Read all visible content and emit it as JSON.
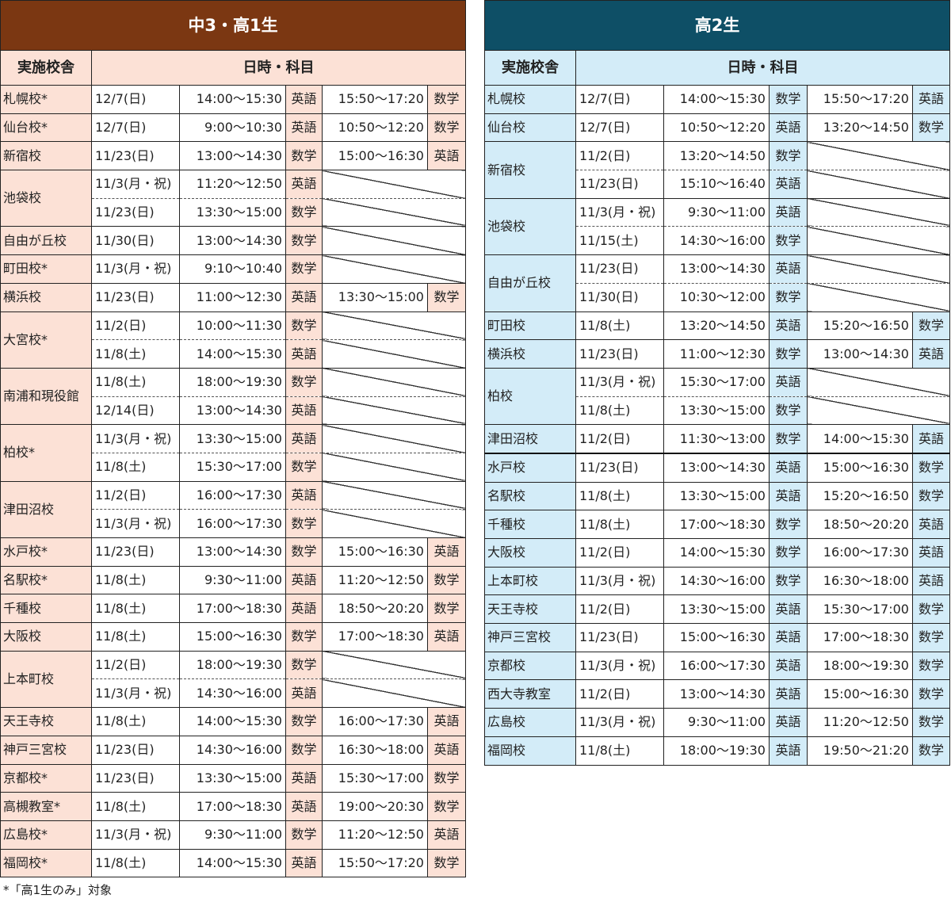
{
  "left": {
    "title": "中3・高1生",
    "header_campus": "実施校舎",
    "header_datetime": "日時・科目",
    "groups": [
      {
        "campus": "札幌校*",
        "rows": [
          {
            "date": "12/7(日)",
            "t1": "14:00～15:30",
            "s1": "英語",
            "t2": "15:50～17:20",
            "s2": "数学"
          }
        ]
      },
      {
        "campus": "仙台校*",
        "rows": [
          {
            "date": "12/7(日)",
            "t1": "9:00～10:30",
            "s1": "英語",
            "t2": "10:50～12:20",
            "s2": "数学"
          }
        ]
      },
      {
        "campus": "新宿校",
        "rows": [
          {
            "date": "11/23(日)",
            "t1": "13:00～14:30",
            "s1": "数学",
            "t2": "15:00～16:30",
            "s2": "英語"
          }
        ]
      },
      {
        "campus": "池袋校",
        "rows": [
          {
            "date": "11/3(月・祝)",
            "t1": "11:20～12:50",
            "s1": "英語"
          },
          {
            "date": "11/23(日)",
            "t1": "13:30～15:00",
            "s1": "数学"
          }
        ]
      },
      {
        "campus": "自由が丘校",
        "rows": [
          {
            "date": "11/30(日)",
            "t1": "13:00～14:30",
            "s1": "数学"
          }
        ]
      },
      {
        "campus": "町田校*",
        "rows": [
          {
            "date": "11/3(月・祝)",
            "t1": "9:10～10:40",
            "s1": "数学"
          }
        ]
      },
      {
        "campus": "横浜校",
        "rows": [
          {
            "date": "11/23(日)",
            "t1": "11:00～12:30",
            "s1": "英語",
            "t2": "13:30～15:00",
            "s2": "数学"
          }
        ]
      },
      {
        "campus": "大宮校*",
        "rows": [
          {
            "date": "11/2(日)",
            "t1": "10:00～11:30",
            "s1": "数学"
          },
          {
            "date": "11/8(土)",
            "t1": "14:00～15:30",
            "s1": "英語"
          }
        ]
      },
      {
        "campus": "南浦和現役館",
        "rows": [
          {
            "date": "11/8(土)",
            "t1": "18:00～19:30",
            "s1": "数学"
          },
          {
            "date": "12/14(日)",
            "t1": "13:00～14:30",
            "s1": "英語"
          }
        ]
      },
      {
        "campus": "柏校*",
        "rows": [
          {
            "date": "11/3(月・祝)",
            "t1": "13:30～15:00",
            "s1": "英語"
          },
          {
            "date": "11/8(土)",
            "t1": "15:30～17:00",
            "s1": "数学"
          }
        ]
      },
      {
        "campus": "津田沼校",
        "rows": [
          {
            "date": "11/2(日)",
            "t1": "16:00～17:30",
            "s1": "英語"
          },
          {
            "date": "11/3(月・祝)",
            "t1": "16:00～17:30",
            "s1": "数学"
          }
        ]
      },
      {
        "campus": "水戸校*",
        "rows": [
          {
            "date": "11/23(日)",
            "t1": "13:00～14:30",
            "s1": "数学",
            "t2": "15:00～16:30",
            "s2": "英語"
          }
        ]
      },
      {
        "campus": "名駅校*",
        "rows": [
          {
            "date": "11/8(土)",
            "t1": "9:30～11:00",
            "s1": "英語",
            "t2": "11:20～12:50",
            "s2": "数学"
          }
        ]
      },
      {
        "campus": "千種校",
        "rows": [
          {
            "date": "11/8(土)",
            "t1": "17:00～18:30",
            "s1": "英語",
            "t2": "18:50～20:20",
            "s2": "数学"
          }
        ]
      },
      {
        "campus": "大阪校",
        "rows": [
          {
            "date": "11/8(土)",
            "t1": "15:00～16:30",
            "s1": "数学",
            "t2": "17:00～18:30",
            "s2": "英語"
          }
        ]
      },
      {
        "campus": "上本町校",
        "rows": [
          {
            "date": "11/2(日)",
            "t1": "18:00～19:30",
            "s1": "数学"
          },
          {
            "date": "11/3(月・祝)",
            "t1": "14:30～16:00",
            "s1": "英語"
          }
        ]
      },
      {
        "campus": "天王寺校",
        "rows": [
          {
            "date": "11/8(土)",
            "t1": "14:00～15:30",
            "s1": "数学",
            "t2": "16:00～17:30",
            "s2": "英語"
          }
        ]
      },
      {
        "campus": "神戸三宮校",
        "rows": [
          {
            "date": "11/23(日)",
            "t1": "14:30～16:00",
            "s1": "数学",
            "t2": "16:30～18:00",
            "s2": "英語"
          }
        ]
      },
      {
        "campus": "京都校*",
        "rows": [
          {
            "date": "11/23(日)",
            "t1": "13:30～15:00",
            "s1": "英語",
            "t2": "15:30～17:00",
            "s2": "数学"
          }
        ]
      },
      {
        "campus": "高槻教室*",
        "rows": [
          {
            "date": "11/8(土)",
            "t1": "17:00～18:30",
            "s1": "英語",
            "t2": "19:00～20:30",
            "s2": "数学"
          }
        ]
      },
      {
        "campus": "広島校*",
        "rows": [
          {
            "date": "11/3(月・祝)",
            "t1": "9:30～11:00",
            "s1": "数学",
            "t2": "11:20～12:50",
            "s2": "英語"
          }
        ]
      },
      {
        "campus": "福岡校*",
        "rows": [
          {
            "date": "11/8(土)",
            "t1": "14:00～15:30",
            "s1": "英語",
            "t2": "15:50～17:20",
            "s2": "数学"
          }
        ]
      }
    ]
  },
  "right": {
    "title": "高2生",
    "header_campus": "実施校舎",
    "header_datetime": "日時・科目",
    "groups": [
      {
        "campus": "札幌校",
        "rows": [
          {
            "date": "12/7(日)",
            "t1": "14:00～15:30",
            "s1": "数学",
            "t2": "15:50～17:20",
            "s2": "英語"
          }
        ]
      },
      {
        "campus": "仙台校",
        "rows": [
          {
            "date": "12/7(日)",
            "t1": "10:50～12:20",
            "s1": "英語",
            "t2": "13:20～14:50",
            "s2": "数学"
          }
        ]
      },
      {
        "campus": "新宿校",
        "rows": [
          {
            "date": "11/2(日)",
            "t1": "13:20～14:50",
            "s1": "数学"
          },
          {
            "date": "11/23(日)",
            "t1": "15:10～16:40",
            "s1": "英語"
          }
        ]
      },
      {
        "campus": "池袋校",
        "rows": [
          {
            "date": "11/3(月・祝)",
            "t1": "9:30～11:00",
            "s1": "英語"
          },
          {
            "date": "11/15(土)",
            "t1": "14:30～16:00",
            "s1": "数学"
          }
        ]
      },
      {
        "campus": "自由が丘校",
        "rows": [
          {
            "date": "11/23(日)",
            "t1": "13:00～14:30",
            "s1": "英語"
          },
          {
            "date": "11/30(日)",
            "t1": "10:30～12:00",
            "s1": "数学"
          }
        ]
      },
      {
        "campus": "町田校",
        "rows": [
          {
            "date": "11/8(土)",
            "t1": "13:20～14:50",
            "s1": "英語",
            "t2": "15:20～16:50",
            "s2": "数学"
          }
        ]
      },
      {
        "campus": "横浜校",
        "rows": [
          {
            "date": "11/23(日)",
            "t1": "11:00～12:30",
            "s1": "数学",
            "t2": "13:00～14:30",
            "s2": "英語"
          }
        ]
      },
      {
        "campus": "柏校",
        "rows": [
          {
            "date": "11/3(月・祝)",
            "t1": "15:30～17:00",
            "s1": "英語"
          },
          {
            "date": "11/8(土)",
            "t1": "13:30～15:00",
            "s1": "数学"
          }
        ]
      },
      {
        "campus": "津田沼校",
        "rows": [
          {
            "date": "11/2(日)",
            "t1": "11:30～13:00",
            "s1": "数学",
            "t2": "14:00～15:30",
            "s2": "英語"
          }
        ]
      },
      {
        "campus": "水戸校",
        "rows": [
          {
            "date": "11/23(日)",
            "t1": "13:00～14:30",
            "s1": "英語",
            "t2": "15:00～16:30",
            "s2": "数学"
          }
        ]
      },
      {
        "campus": "名駅校",
        "rows": [
          {
            "date": "11/8(土)",
            "t1": "13:30～15:00",
            "s1": "英語",
            "t2": "15:20～16:50",
            "s2": "数学"
          }
        ]
      },
      {
        "campus": "千種校",
        "rows": [
          {
            "date": "11/8(土)",
            "t1": "17:00～18:30",
            "s1": "数学",
            "t2": "18:50～20:20",
            "s2": "英語"
          }
        ]
      },
      {
        "campus": "大阪校",
        "rows": [
          {
            "date": "11/2(日)",
            "t1": "14:00～15:30",
            "s1": "数学",
            "t2": "16:00～17:30",
            "s2": "英語"
          }
        ]
      },
      {
        "campus": "上本町校",
        "rows": [
          {
            "date": "11/3(月・祝)",
            "t1": "14:30～16:00",
            "s1": "数学",
            "t2": "16:30～18:00",
            "s2": "英語"
          }
        ]
      },
      {
        "campus": "天王寺校",
        "rows": [
          {
            "date": "11/2(日)",
            "t1": "13:30～15:00",
            "s1": "英語",
            "t2": "15:30～17:00",
            "s2": "数学"
          }
        ]
      },
      {
        "campus": "神戸三宮校",
        "rows": [
          {
            "date": "11/23(日)",
            "t1": "15:00～16:30",
            "s1": "英語",
            "t2": "17:00～18:30",
            "s2": "数学"
          }
        ]
      },
      {
        "campus": "京都校",
        "rows": [
          {
            "date": "11/3(月・祝)",
            "t1": "16:00～17:30",
            "s1": "英語",
            "t2": "18:00～19:30",
            "s2": "数学"
          }
        ]
      },
      {
        "campus": "西大寺教室",
        "rows": [
          {
            "date": "11/2(日)",
            "t1": "13:00～14:30",
            "s1": "英語",
            "t2": "15:00～16:30",
            "s2": "数学"
          }
        ]
      },
      {
        "campus": "広島校",
        "rows": [
          {
            "date": "11/3(月・祝)",
            "t1": "9:30～11:00",
            "s1": "英語",
            "t2": "11:20～12:50",
            "s2": "数学"
          }
        ]
      },
      {
        "campus": "福岡校",
        "rows": [
          {
            "date": "11/8(土)",
            "t1": "18:00～19:30",
            "s1": "英語",
            "t2": "19:50～21:20",
            "s2": "数学"
          }
        ]
      }
    ]
  },
  "footnote": "*「高1生のみ」対象",
  "colors": {
    "left_title_bg": "#7b3712",
    "left_cell_bg": "#fce1d6",
    "right_title_bg": "#0e4f66",
    "right_cell_bg": "#d3ecf8"
  }
}
